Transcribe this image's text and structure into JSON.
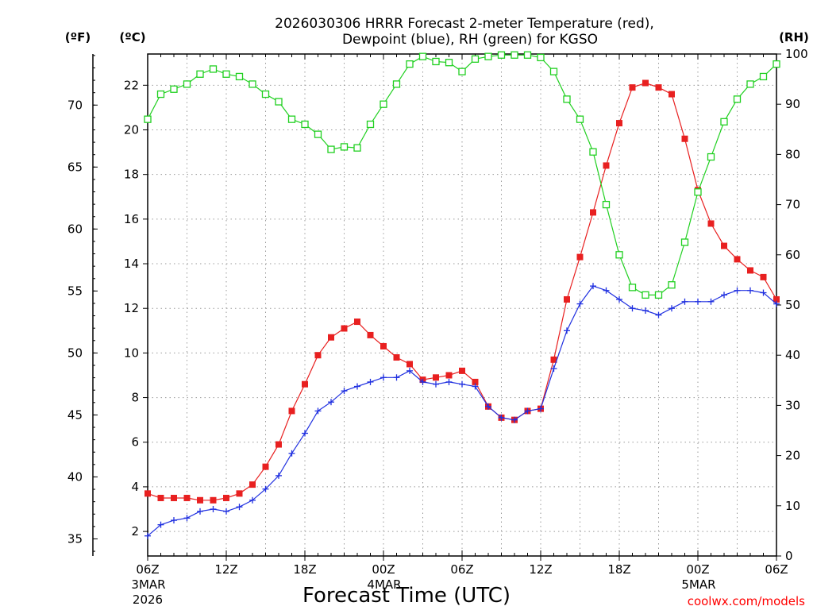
{
  "chart_data": {
    "type": "line",
    "title_line1": "2026030306 HRRR Forecast 2-meter Temperature (red),",
    "title_line2": "Dewpoint (blue), RH (green) for KGSO",
    "xlabel": "Forecast Time (UTC)",
    "credit": "coolwx.com/models",
    "credit_color": "#ff0000",
    "axes": {
      "left_outer_unit": "(ºF)",
      "left_inner_unit": "(ºC)",
      "right_unit": "(RH)",
      "celsius_ticks": [
        2,
        4,
        6,
        8,
        10,
        12,
        14,
        16,
        18,
        20,
        22
      ],
      "fahrenheit_ticks": [
        35,
        40,
        45,
        50,
        55,
        60,
        65,
        70
      ],
      "rh_ticks": [
        0,
        10,
        20,
        30,
        40,
        50,
        60,
        70,
        80,
        90,
        100
      ],
      "celsius_range": [
        0.9,
        23.4
      ],
      "rh_range": [
        0,
        100
      ],
      "hours_range": [
        0,
        48
      ]
    },
    "x_ticks": [
      {
        "hour": 0,
        "label": "06Z",
        "sub1": "3MAR",
        "sub2": "2026"
      },
      {
        "hour": 6,
        "label": "12Z",
        "sub1": "",
        "sub2": ""
      },
      {
        "hour": 12,
        "label": "18Z",
        "sub1": "",
        "sub2": ""
      },
      {
        "hour": 18,
        "label": "00Z",
        "sub1": "4MAR",
        "sub2": ""
      },
      {
        "hour": 24,
        "label": "06Z",
        "sub1": "",
        "sub2": ""
      },
      {
        "hour": 30,
        "label": "12Z",
        "sub1": "",
        "sub2": ""
      },
      {
        "hour": 36,
        "label": "18Z",
        "sub1": "",
        "sub2": ""
      },
      {
        "hour": 42,
        "label": "00Z",
        "sub1": "5MAR",
        "sub2": ""
      },
      {
        "hour": 48,
        "label": "06Z",
        "sub1": "",
        "sub2": ""
      }
    ],
    "series": [
      {
        "name": "Temperature",
        "unit": "C",
        "axis": "left",
        "color": "#e82020",
        "marker": "filled-square",
        "values": [
          3.7,
          3.5,
          3.5,
          3.5,
          3.4,
          3.4,
          3.5,
          3.7,
          4.1,
          4.9,
          5.9,
          7.4,
          8.6,
          9.9,
          10.7,
          11.1,
          11.4,
          10.8,
          10.3,
          9.8,
          9.5,
          8.8,
          8.9,
          9.0,
          9.2,
          8.7,
          7.6,
          7.1,
          7.0,
          7.4,
          7.5,
          9.7,
          12.4,
          14.3,
          16.3,
          18.4,
          20.3,
          21.9,
          22.1,
          21.9,
          21.6,
          19.6,
          17.3,
          15.8,
          14.8,
          14.2,
          13.7,
          13.4,
          12.4
        ]
      },
      {
        "name": "Dewpoint",
        "unit": "C",
        "axis": "left",
        "color": "#2030e0",
        "marker": "plus",
        "values": [
          1.8,
          2.3,
          2.5,
          2.6,
          2.9,
          3.0,
          2.9,
          3.1,
          3.4,
          3.9,
          4.5,
          5.5,
          6.4,
          7.4,
          7.8,
          8.3,
          8.5,
          8.7,
          8.9,
          8.9,
          9.2,
          8.7,
          8.6,
          8.7,
          8.6,
          8.5,
          7.6,
          7.1,
          7.0,
          7.4,
          7.5,
          9.3,
          11.0,
          12.2,
          13.0,
          12.8,
          12.4,
          12.0,
          11.9,
          11.7,
          12.0,
          12.3,
          12.3,
          12.3,
          12.6,
          12.8,
          12.8,
          12.7,
          12.2
        ]
      },
      {
        "name": "RH",
        "unit": "%",
        "axis": "right",
        "color": "#20d020",
        "marker": "open-square",
        "values": [
          87,
          92,
          93,
          94,
          96,
          97,
          96,
          95.5,
          94,
          92,
          90.5,
          87,
          86,
          84,
          81,
          81.5,
          81.3,
          86,
          90,
          94,
          98,
          99.5,
          98.5,
          98.3,
          96.5,
          99,
          99.5,
          99.8,
          99.8,
          99.8,
          99.3,
          96.5,
          91,
          87,
          80.5,
          70,
          60,
          53.5,
          52,
          52,
          54,
          62.5,
          72.5,
          79.5,
          86.5,
          91,
          94,
          95.5,
          98
        ]
      }
    ]
  }
}
